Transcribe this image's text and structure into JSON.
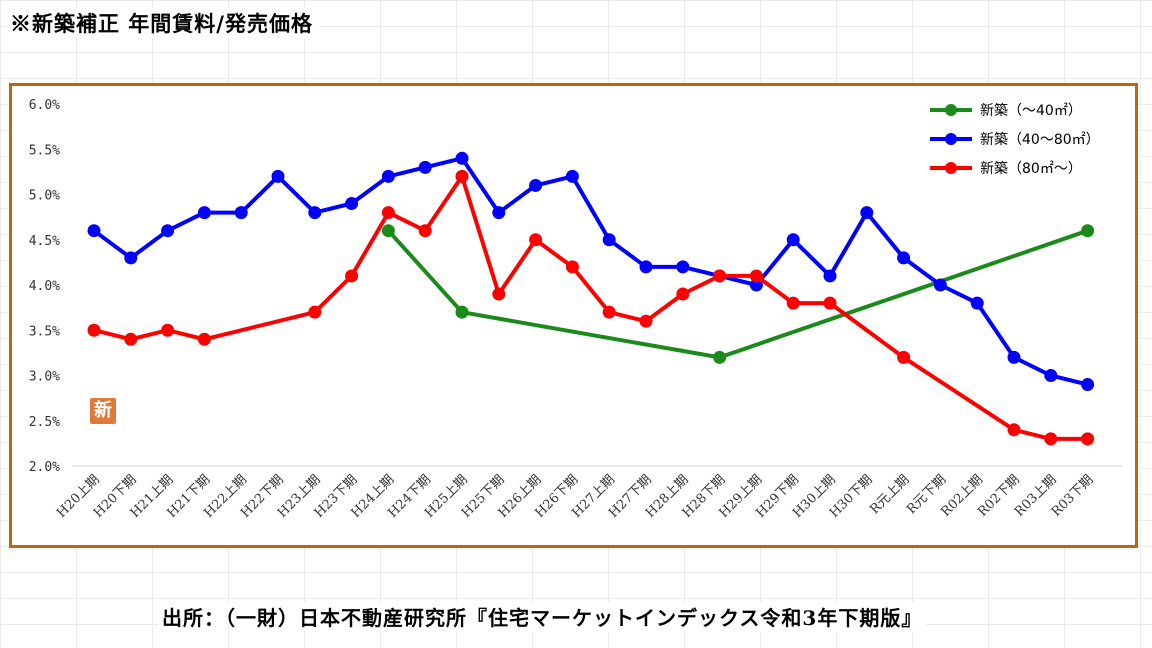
{
  "title": "※新築補正 年間賃料/発売価格",
  "source": "出所：（一財）日本不動産研究所『住宅マーケットインデックス令和3年下期版』",
  "badge_text": "新",
  "colors": {
    "frame": "#c0650e",
    "green": "#1a8a1a",
    "blue": "#0000ff",
    "red": "#ff0000",
    "badge": "#e07a3a"
  },
  "chart_data": {
    "type": "line",
    "categories": [
      "H20上期",
      "H20下期",
      "H21上期",
      "H21下期",
      "H22上期",
      "H22下期",
      "H23上期",
      "H23下期",
      "H24上期",
      "H24下期",
      "H25上期",
      "H25下期",
      "H26上期",
      "H26下期",
      "H27上期",
      "H27下期",
      "H28上期",
      "H28下期",
      "H29上期",
      "H29下期",
      "H30上期",
      "H30下期",
      "R元上期",
      "R元下期",
      "R02上期",
      "R02下期",
      "R03上期",
      "R03下期"
    ],
    "ylim": [
      0.02,
      0.06
    ],
    "yticks": [
      "2.0%",
      "2.5%",
      "3.0%",
      "3.5%",
      "4.0%",
      "4.5%",
      "5.0%",
      "5.5%",
      "6.0%"
    ],
    "yticks_values": [
      0.02,
      0.025,
      0.03,
      0.035,
      0.04,
      0.045,
      0.05,
      0.055,
      0.06
    ],
    "legend_position": "top-right",
    "series": [
      {
        "name": "新築（～40㎡）",
        "color": "#1a8a1a",
        "values": [
          null,
          null,
          null,
          null,
          null,
          null,
          null,
          null,
          0.046,
          null,
          0.037,
          null,
          null,
          null,
          null,
          null,
          null,
          0.032,
          null,
          null,
          null,
          null,
          null,
          null,
          null,
          null,
          null,
          0.046
        ]
      },
      {
        "name": "新築（40～80㎡）",
        "color": "#0000ff",
        "values": [
          0.046,
          0.043,
          0.046,
          0.048,
          0.048,
          0.052,
          0.048,
          0.049,
          0.052,
          0.053,
          0.054,
          0.048,
          0.051,
          0.052,
          0.045,
          0.042,
          0.042,
          0.041,
          0.04,
          0.045,
          0.041,
          0.048,
          0.043,
          0.04,
          0.038,
          0.032,
          0.03,
          0.029
        ]
      },
      {
        "name": "新築（80㎡～）",
        "color": "#ff0000",
        "values": [
          0.035,
          0.034,
          0.035,
          0.034,
          null,
          null,
          0.037,
          0.041,
          0.048,
          0.046,
          0.052,
          0.039,
          0.045,
          0.042,
          0.037,
          0.036,
          0.039,
          0.041,
          0.041,
          0.038,
          0.038,
          null,
          0.032,
          null,
          null,
          0.024,
          0.023,
          0.023
        ]
      }
    ]
  }
}
